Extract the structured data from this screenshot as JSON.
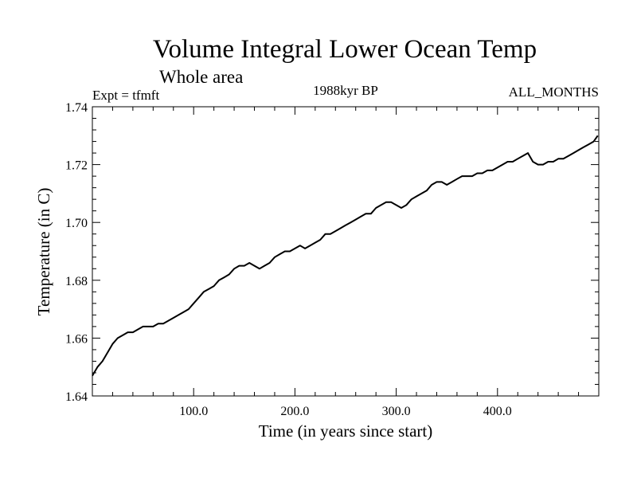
{
  "chart_data": {
    "type": "line",
    "title": "Volume Integral Lower Ocean Temp",
    "subtitle": "Whole area",
    "left_label": "Expt = tfmft",
    "center_label": "1988kyr BP",
    "right_label": "ALL_MONTHS",
    "xlabel": "Time (in years since start)",
    "ylabel": "Temperature (in C)",
    "xlim": [
      0,
      500
    ],
    "ylim": [
      1.64,
      1.74
    ],
    "xticks": [
      100,
      200,
      300,
      400
    ],
    "xtick_labels": [
      "100.0",
      "200.0",
      "300.0",
      "400.0"
    ],
    "yticks": [
      1.64,
      1.66,
      1.68,
      1.7,
      1.72,
      1.74
    ],
    "ytick_labels": [
      "1.64",
      "1.66",
      "1.68",
      "1.70",
      "1.72",
      "1.74"
    ],
    "series": [
      {
        "name": "Temperature",
        "color": "#000000",
        "x": [
          0,
          5,
          10,
          15,
          20,
          25,
          30,
          35,
          40,
          45,
          50,
          55,
          60,
          65,
          70,
          75,
          80,
          85,
          90,
          95,
          100,
          105,
          110,
          115,
          120,
          125,
          130,
          135,
          140,
          145,
          150,
          155,
          160,
          165,
          170,
          175,
          180,
          185,
          190,
          195,
          200,
          205,
          210,
          215,
          220,
          225,
          230,
          235,
          240,
          245,
          250,
          255,
          260,
          265,
          270,
          275,
          280,
          285,
          290,
          295,
          300,
          305,
          310,
          315,
          320,
          325,
          330,
          335,
          340,
          345,
          350,
          355,
          360,
          365,
          370,
          375,
          380,
          385,
          390,
          395,
          400,
          405,
          410,
          415,
          420,
          425,
          430,
          435,
          440,
          445,
          450,
          455,
          460,
          465,
          470,
          475,
          480,
          485,
          490,
          495,
          499
        ],
        "y": [
          1.647,
          1.65,
          1.652,
          1.655,
          1.658,
          1.66,
          1.661,
          1.662,
          1.662,
          1.663,
          1.664,
          1.664,
          1.664,
          1.665,
          1.665,
          1.666,
          1.667,
          1.668,
          1.669,
          1.67,
          1.672,
          1.674,
          1.676,
          1.677,
          1.678,
          1.68,
          1.681,
          1.682,
          1.684,
          1.685,
          1.685,
          1.686,
          1.685,
          1.684,
          1.685,
          1.686,
          1.688,
          1.689,
          1.69,
          1.69,
          1.691,
          1.692,
          1.691,
          1.692,
          1.693,
          1.694,
          1.696,
          1.696,
          1.697,
          1.698,
          1.699,
          1.7,
          1.701,
          1.702,
          1.703,
          1.703,
          1.705,
          1.706,
          1.707,
          1.707,
          1.706,
          1.705,
          1.706,
          1.708,
          1.709,
          1.71,
          1.711,
          1.713,
          1.714,
          1.714,
          1.713,
          1.714,
          1.715,
          1.716,
          1.716,
          1.716,
          1.717,
          1.717,
          1.718,
          1.718,
          1.719,
          1.72,
          1.721,
          1.721,
          1.722,
          1.723,
          1.724,
          1.721,
          1.72,
          1.72,
          1.721,
          1.721,
          1.722,
          1.722,
          1.723,
          1.724,
          1.725,
          1.726,
          1.727,
          1.728,
          1.73
        ]
      }
    ]
  }
}
